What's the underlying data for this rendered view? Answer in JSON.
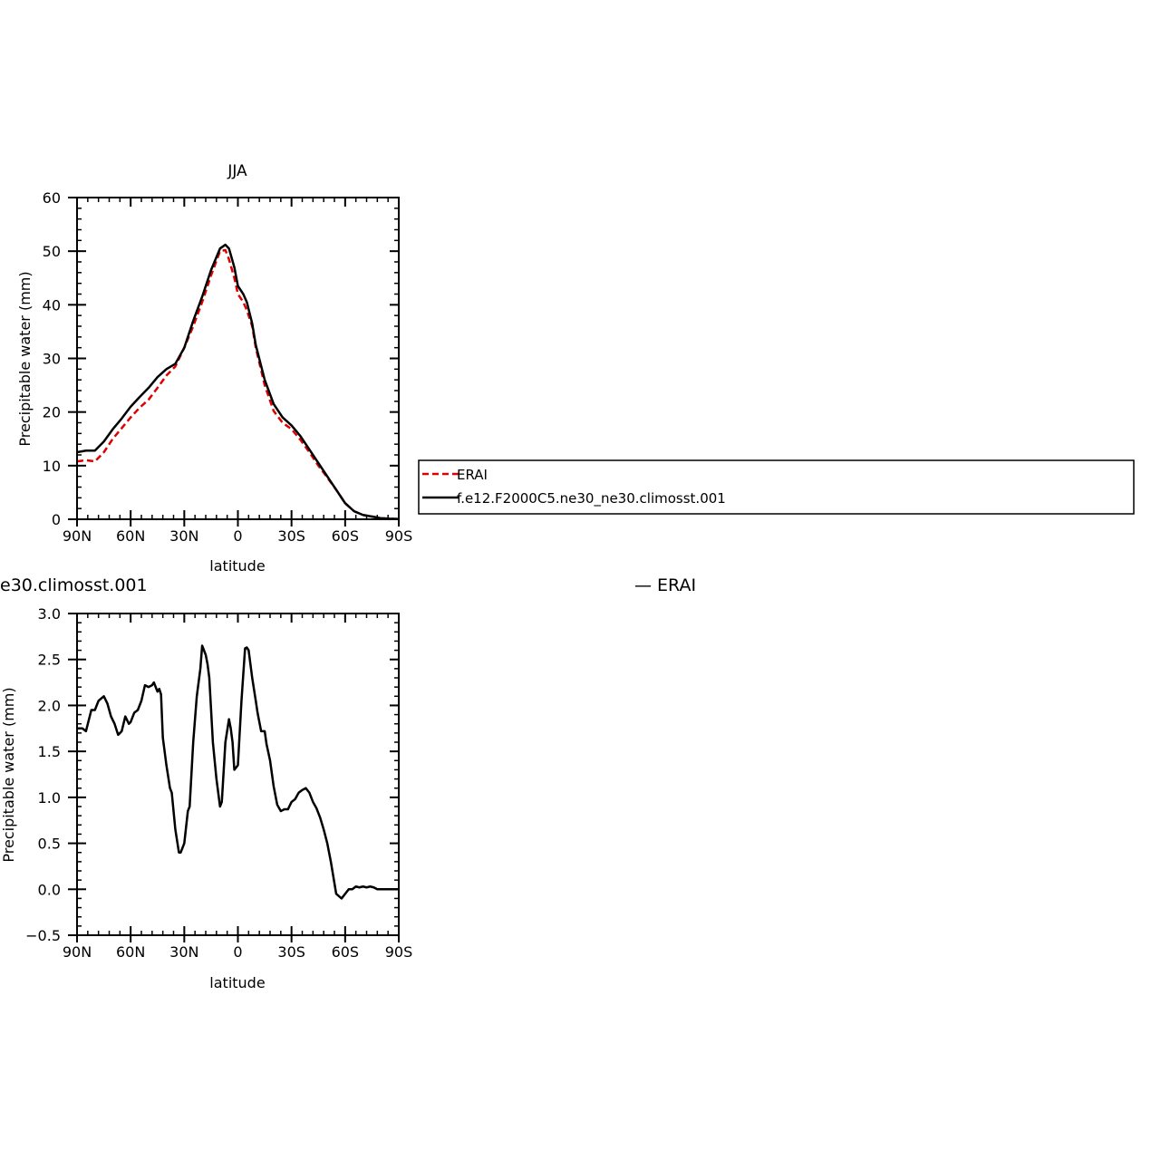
{
  "chart_data": [
    {
      "type": "line",
      "title": "JJA",
      "xlabel": "latitude",
      "ylabel": "Precipitable water (mm)",
      "xlim": [
        -90,
        90
      ],
      "ylim": [
        0,
        60
      ],
      "xticks": [
        -90,
        -60,
        -30,
        0,
        30,
        60,
        90
      ],
      "xticklabels": [
        "90N",
        "60N",
        "30N",
        "0",
        "30S",
        "60S",
        "90S"
      ],
      "yticks": [
        0,
        10,
        20,
        30,
        40,
        50,
        60
      ],
      "yticklabels": [
        "0",
        "10",
        "20",
        "30",
        "40",
        "50",
        "60"
      ],
      "grid": false,
      "legend_position": "right",
      "series": [
        {
          "name": "ERAI",
          "color": "#e00000",
          "dash": "dashed",
          "x": [
            -90,
            -85,
            -80,
            -75,
            -70,
            -65,
            -60,
            -55,
            -50,
            -45,
            -40,
            -35,
            -30,
            -25,
            -20,
            -15,
            -10,
            -7,
            -5,
            -2,
            0,
            3,
            5,
            8,
            10,
            15,
            20,
            25,
            30,
            35,
            40,
            45,
            50,
            55,
            60,
            65,
            70,
            75,
            80,
            85,
            90
          ],
          "y": [
            10.8,
            11.0,
            10.8,
            12.5,
            15.0,
            17.0,
            19.0,
            20.8,
            22.3,
            24.5,
            26.8,
            28.5,
            32.0,
            36.0,
            40.5,
            45.5,
            50.0,
            50.2,
            48.5,
            45.0,
            42.0,
            40.5,
            39.0,
            36.0,
            32.0,
            25.0,
            20.2,
            18.0,
            16.8,
            14.8,
            12.5,
            10.0,
            7.8,
            5.5,
            3.0,
            1.5,
            0.8,
            0.5,
            0.2,
            0.1,
            0.05
          ]
        },
        {
          "name": "f.e12.F2000C5.ne30_ne30.climosst.001",
          "color": "#000000",
          "dash": "solid",
          "x": [
            -90,
            -85,
            -80,
            -75,
            -70,
            -65,
            -60,
            -55,
            -50,
            -45,
            -40,
            -35,
            -30,
            -25,
            -20,
            -15,
            -10,
            -7,
            -5,
            -2,
            0,
            3,
            5,
            8,
            10,
            15,
            20,
            25,
            30,
            35,
            40,
            45,
            50,
            55,
            60,
            65,
            70,
            75,
            80,
            85,
            90
          ],
          "y": [
            12.5,
            12.8,
            12.8,
            14.5,
            16.8,
            18.8,
            21.0,
            22.8,
            24.5,
            26.5,
            28.0,
            29.0,
            32.0,
            37.0,
            41.5,
            46.5,
            50.5,
            51.2,
            50.5,
            47.0,
            43.5,
            42.0,
            40.5,
            36.5,
            32.5,
            26.0,
            21.5,
            19.0,
            17.5,
            15.5,
            13.0,
            10.5,
            8.0,
            5.5,
            3.0,
            1.5,
            0.8,
            0.5,
            0.2,
            0.1,
            0.05
          ]
        }
      ]
    },
    {
      "type": "line",
      "title": "e30.climosst.001",
      "right_title": "ERAI",
      "xlabel": "latitude",
      "ylabel": "Precipitable water (mm)",
      "xlim": [
        -90,
        90
      ],
      "ylim": [
        -0.5,
        3.0
      ],
      "xticks": [
        -90,
        -60,
        -30,
        0,
        30,
        60,
        90
      ],
      "xticklabels": [
        "90N",
        "60N",
        "30N",
        "0",
        "30S",
        "60S",
        "90S"
      ],
      "yticks": [
        -0.5,
        0.0,
        0.5,
        1.0,
        1.5,
        2.0,
        2.5,
        3.0
      ],
      "yticklabels": [
        "−0.5",
        "0.0",
        "0.5",
        "1.0",
        "1.5",
        "2.0",
        "2.5",
        "3.0"
      ],
      "grid": false,
      "series": [
        {
          "name": "",
          "color": "#000000",
          "dash": "solid",
          "x": [
            -90,
            -87,
            -85,
            -82,
            -80,
            -78,
            -75,
            -73,
            -71,
            -69,
            -67,
            -65,
            -63,
            -61,
            -60,
            -58,
            -56,
            -54,
            -52,
            -50,
            -48,
            -47,
            -45,
            -44,
            -43,
            -42,
            -40,
            -38,
            -37,
            -35,
            -33,
            -32,
            -30,
            -28,
            -27,
            -25,
            -23,
            -21,
            -20,
            -18,
            -17,
            -16,
            -14,
            -12,
            -10,
            -9,
            -7,
            -5,
            -4,
            -3,
            -2,
            0,
            2,
            4,
            5,
            6,
            8,
            10,
            11,
            13,
            15,
            16,
            18,
            20,
            22,
            24,
            26,
            28,
            30,
            32,
            34,
            36,
            38,
            40,
            42,
            44,
            46,
            48,
            50,
            52,
            55,
            58,
            60,
            62,
            64,
            66,
            68,
            70,
            72,
            74,
            76,
            78,
            80,
            82,
            84,
            86,
            88,
            90
          ],
          "y": [
            1.75,
            1.75,
            1.72,
            1.95,
            1.95,
            2.05,
            2.1,
            2.02,
            1.88,
            1.8,
            1.68,
            1.72,
            1.88,
            1.8,
            1.82,
            1.92,
            1.95,
            2.05,
            2.22,
            2.2,
            2.22,
            2.25,
            2.15,
            2.18,
            2.12,
            1.65,
            1.35,
            1.1,
            1.05,
            0.65,
            0.4,
            0.4,
            0.5,
            0.85,
            0.9,
            1.6,
            2.1,
            2.4,
            2.65,
            2.55,
            2.45,
            2.3,
            1.6,
            1.2,
            0.9,
            0.95,
            1.6,
            1.85,
            1.75,
            1.6,
            1.3,
            1.35,
            2.05,
            2.62,
            2.63,
            2.6,
            2.3,
            2.05,
            1.92,
            1.72,
            1.72,
            1.58,
            1.4,
            1.12,
            0.92,
            0.85,
            0.87,
            0.87,
            0.95,
            0.98,
            1.05,
            1.08,
            1.1,
            1.05,
            0.95,
            0.88,
            0.78,
            0.65,
            0.5,
            0.3,
            -0.05,
            -0.1,
            -0.05,
            0.0,
            0.0,
            0.03,
            0.02,
            0.03,
            0.02,
            0.03,
            0.02,
            0.0,
            0.0,
            0.0,
            0.0,
            0.0,
            0.0,
            0.0
          ]
        }
      ]
    }
  ],
  "legend": {
    "entries": [
      {
        "label": "ERAI",
        "color": "#e00000",
        "dash": "dashed"
      },
      {
        "label": "f.e12.F2000C5.ne30_ne30.climosst.001",
        "color": "#000000",
        "dash": "solid"
      }
    ]
  },
  "panel2_right_legend": "—  ERAI"
}
